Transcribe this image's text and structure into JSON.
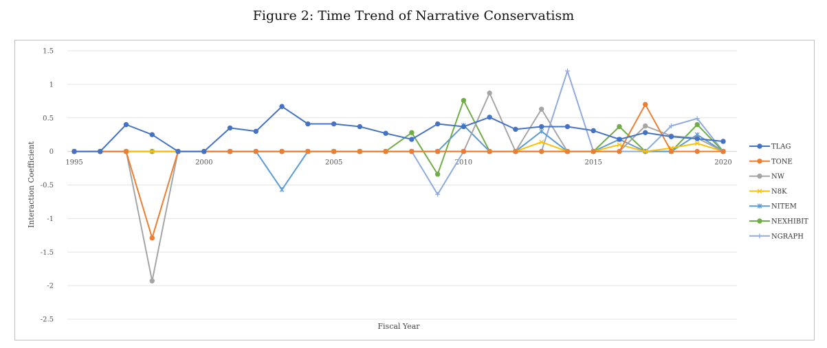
{
  "figure_title": "Figure 2: Time Trend of Narrative Conservatism",
  "chart_data": {
    "type": "line",
    "title": "",
    "xlabel": "Fiscal Year",
    "ylabel": "Interaction Coefficient",
    "x": [
      1995,
      1996,
      1997,
      1998,
      1999,
      2000,
      2001,
      2002,
      2003,
      2004,
      2005,
      2006,
      2007,
      2008,
      2009,
      2010,
      2011,
      2012,
      2013,
      2014,
      2015,
      2016,
      2017,
      2018,
      2019,
      2020
    ],
    "xticks": [
      1995,
      2000,
      2005,
      2010,
      2015,
      2020
    ],
    "ylim": [
      -2.5,
      1.5
    ],
    "yticks": [
      -2.5,
      -2,
      -1.5,
      -1,
      -0.5,
      0,
      0.5,
      1,
      1.5
    ],
    "grid": true,
    "legend_position": "right",
    "series": [
      {
        "name": "TLAG",
        "color": "#4472c4",
        "marker": "circle",
        "values": [
          0,
          0,
          0.4,
          0.25,
          0,
          0,
          0.35,
          0.3,
          0.67,
          0.41,
          0.41,
          0.37,
          0.27,
          0.18,
          0.41,
          0.37,
          0.51,
          0.33,
          0.37,
          0.37,
          0.31,
          0.18,
          0.28,
          0.22,
          0.19,
          0.15
        ]
      },
      {
        "name": "TONE",
        "color": "#ed7d31",
        "marker": "circle",
        "values": [
          0,
          0,
          0,
          -1.29,
          0,
          0,
          0,
          0,
          0,
          0,
          0,
          0,
          0,
          0,
          0,
          0,
          0,
          0,
          0,
          0,
          0,
          0,
          0.7,
          0,
          0,
          0
        ]
      },
      {
        "name": "NW",
        "color": "#a5a5a5",
        "marker": "circle",
        "values": [
          0,
          0,
          0,
          -1.93,
          0,
          0,
          0,
          0,
          0,
          0,
          0,
          0,
          0,
          0,
          0,
          0,
          0.87,
          0,
          0.63,
          0,
          0,
          0,
          0.38,
          0.23,
          0.2,
          0
        ]
      },
      {
        "name": "N8K",
        "color": "#ffc000",
        "marker": "x",
        "values": [
          0,
          0,
          0,
          0,
          0,
          0,
          0,
          0,
          0,
          0,
          0,
          0,
          0,
          0,
          0,
          0,
          0,
          0,
          0.14,
          0,
          0,
          0.1,
          0,
          0.05,
          0.12,
          0
        ]
      },
      {
        "name": "NITEM",
        "color": "#5b9bd5",
        "marker": "star",
        "values": [
          0,
          0,
          0,
          0,
          0,
          0,
          0,
          0,
          -0.57,
          0,
          0,
          0,
          0,
          0,
          0,
          0.39,
          0,
          0,
          0.3,
          0,
          0,
          0.18,
          0,
          0,
          0.25,
          0
        ]
      },
      {
        "name": "NEXHIBIT",
        "color": "#70ad47",
        "marker": "circle",
        "values": [
          0,
          0,
          0,
          0,
          0,
          0,
          0,
          0,
          0,
          0,
          0,
          0,
          0,
          0.28,
          -0.34,
          0.76,
          0,
          0,
          0,
          0,
          0,
          0.37,
          0,
          0,
          0.4,
          0
        ]
      },
      {
        "name": "NGRAPH",
        "color": "#8faadc",
        "marker": "plus",
        "values": [
          0,
          0,
          0,
          0,
          0,
          0,
          0,
          0,
          0,
          0,
          0,
          0,
          0,
          0,
          -0.64,
          0,
          0,
          0,
          0,
          1.2,
          0,
          0,
          0,
          0.38,
          0.49,
          0
        ]
      }
    ]
  }
}
